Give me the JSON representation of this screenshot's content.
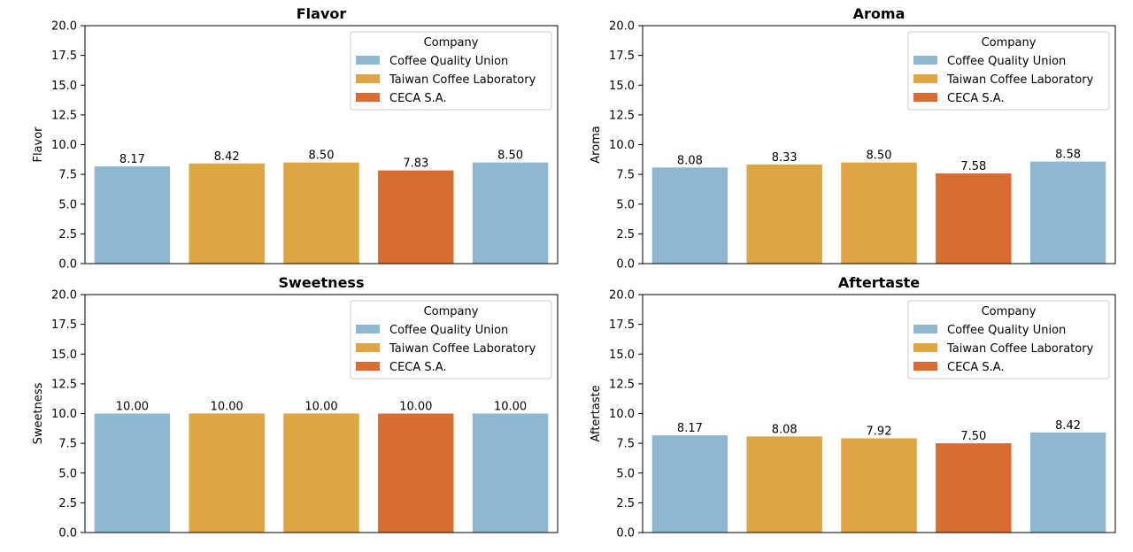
{
  "colors": {
    "Coffee Quality Union": "#8fb8d0",
    "Taiwan Coffee Laboratory": "#dea642",
    "CECA S.A.": "#d96c33"
  },
  "chart_data": [
    {
      "type": "bar",
      "title": "Flavor",
      "ylabel": "Flavor",
      "ylim": [
        0,
        20
      ],
      "yticks": [
        "0.0",
        "2.5",
        "5.0",
        "7.5",
        "10.0",
        "12.5",
        "15.0",
        "17.5",
        "20.0"
      ],
      "values": [
        8.17,
        8.42,
        8.5,
        7.83,
        8.5
      ],
      "value_labels": [
        "8.17",
        "8.42",
        "8.50",
        "7.83",
        "8.50"
      ],
      "companies": [
        "Coffee Quality Union",
        "Taiwan Coffee Laboratory",
        "Taiwan Coffee Laboratory",
        "CECA S.A.",
        "Coffee Quality Union"
      ],
      "legend": {
        "title": "Company",
        "entries": [
          "Coffee Quality Union",
          "Taiwan Coffee Laboratory",
          "CECA S.A."
        ],
        "placement": "top-right"
      }
    },
    {
      "type": "bar",
      "title": "Aroma",
      "ylabel": "Aroma",
      "ylim": [
        0,
        20
      ],
      "yticks": [
        "0.0",
        "2.5",
        "5.0",
        "7.5",
        "10.0",
        "12.5",
        "15.0",
        "17.5",
        "20.0"
      ],
      "values": [
        8.08,
        8.33,
        8.5,
        7.58,
        8.58
      ],
      "value_labels": [
        "8.08",
        "8.33",
        "8.50",
        "7.58",
        "8.58"
      ],
      "companies": [
        "Coffee Quality Union",
        "Taiwan Coffee Laboratory",
        "Taiwan Coffee Laboratory",
        "CECA S.A.",
        "Coffee Quality Union"
      ],
      "legend": {
        "title": "Company",
        "entries": [
          "Coffee Quality Union",
          "Taiwan Coffee Laboratory",
          "CECA S.A."
        ],
        "placement": "top-right"
      }
    },
    {
      "type": "bar",
      "title": "Sweetness",
      "ylabel": "Sweetness",
      "ylim": [
        0,
        20
      ],
      "yticks": [
        "0.0",
        "2.5",
        "5.0",
        "7.5",
        "10.0",
        "12.5",
        "15.0",
        "17.5",
        "20.0"
      ],
      "values": [
        10.0,
        10.0,
        10.0,
        10.0,
        10.0
      ],
      "value_labels": [
        "10.00",
        "10.00",
        "10.00",
        "10.00",
        "10.00"
      ],
      "companies": [
        "Coffee Quality Union",
        "Taiwan Coffee Laboratory",
        "Taiwan Coffee Laboratory",
        "CECA S.A.",
        "Coffee Quality Union"
      ],
      "legend": {
        "title": "Company",
        "entries": [
          "Coffee Quality Union",
          "Taiwan Coffee Laboratory",
          "CECA S.A."
        ],
        "placement": "top-right"
      }
    },
    {
      "type": "bar",
      "title": "Aftertaste",
      "ylabel": "Aftertaste",
      "ylim": [
        0,
        20
      ],
      "yticks": [
        "0.0",
        "2.5",
        "5.0",
        "7.5",
        "10.0",
        "12.5",
        "15.0",
        "17.5",
        "20.0"
      ],
      "values": [
        8.17,
        8.08,
        7.92,
        7.5,
        8.42
      ],
      "value_labels": [
        "8.17",
        "8.08",
        "7.92",
        "7.50",
        "8.42"
      ],
      "companies": [
        "Coffee Quality Union",
        "Taiwan Coffee Laboratory",
        "Taiwan Coffee Laboratory",
        "CECA S.A.",
        "Coffee Quality Union"
      ],
      "legend": {
        "title": "Company",
        "entries": [
          "Coffee Quality Union",
          "Taiwan Coffee Laboratory",
          "CECA S.A."
        ],
        "placement": "top-right"
      }
    }
  ]
}
